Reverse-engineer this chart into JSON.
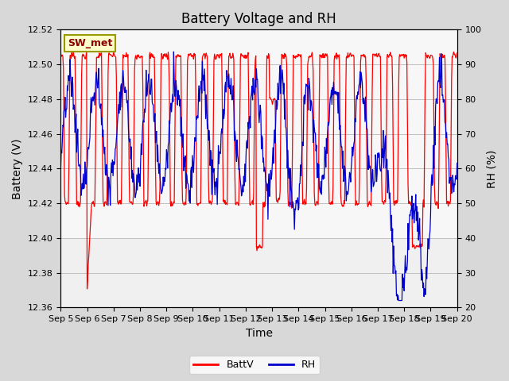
{
  "title": "Battery Voltage and RH",
  "xlabel": "Time",
  "ylabel_left": "Battery (V)",
  "ylabel_right": "RH (%)",
  "station_label": "SW_met",
  "ylim_left": [
    12.36,
    12.52
  ],
  "ylim_right": [
    20,
    100
  ],
  "yticks_left": [
    12.36,
    12.38,
    12.4,
    12.42,
    12.44,
    12.46,
    12.48,
    12.5,
    12.52
  ],
  "yticks_right": [
    20,
    30,
    40,
    50,
    60,
    70,
    80,
    90,
    100
  ],
  "xtick_labels": [
    "Sep 5",
    "Sep 6",
    "Sep 7",
    "Sep 8",
    "Sep 9",
    "Sep 10",
    "Sep 11",
    "Sep 12",
    "Sep 13",
    "Sep 14",
    "Sep 15",
    "Sep 16",
    "Sep 17",
    "Sep 18",
    "Sep 19",
    "Sep 20"
  ],
  "color_battv": "#FF0000",
  "color_rh": "#0000CC",
  "legend_battv": "BattV",
  "legend_rh": "RH",
  "bg_color": "#D8D8D8",
  "plot_bg_color": "#E8E8E8",
  "inner_bg_color": "#F0F0F0",
  "title_fontsize": 12,
  "axis_label_fontsize": 10,
  "tick_fontsize": 8,
  "n_days": 15,
  "n_per_day": 48,
  "batt_high": 12.505,
  "batt_mid": 12.42,
  "batt_seed": 7,
  "rh_seed": 13
}
